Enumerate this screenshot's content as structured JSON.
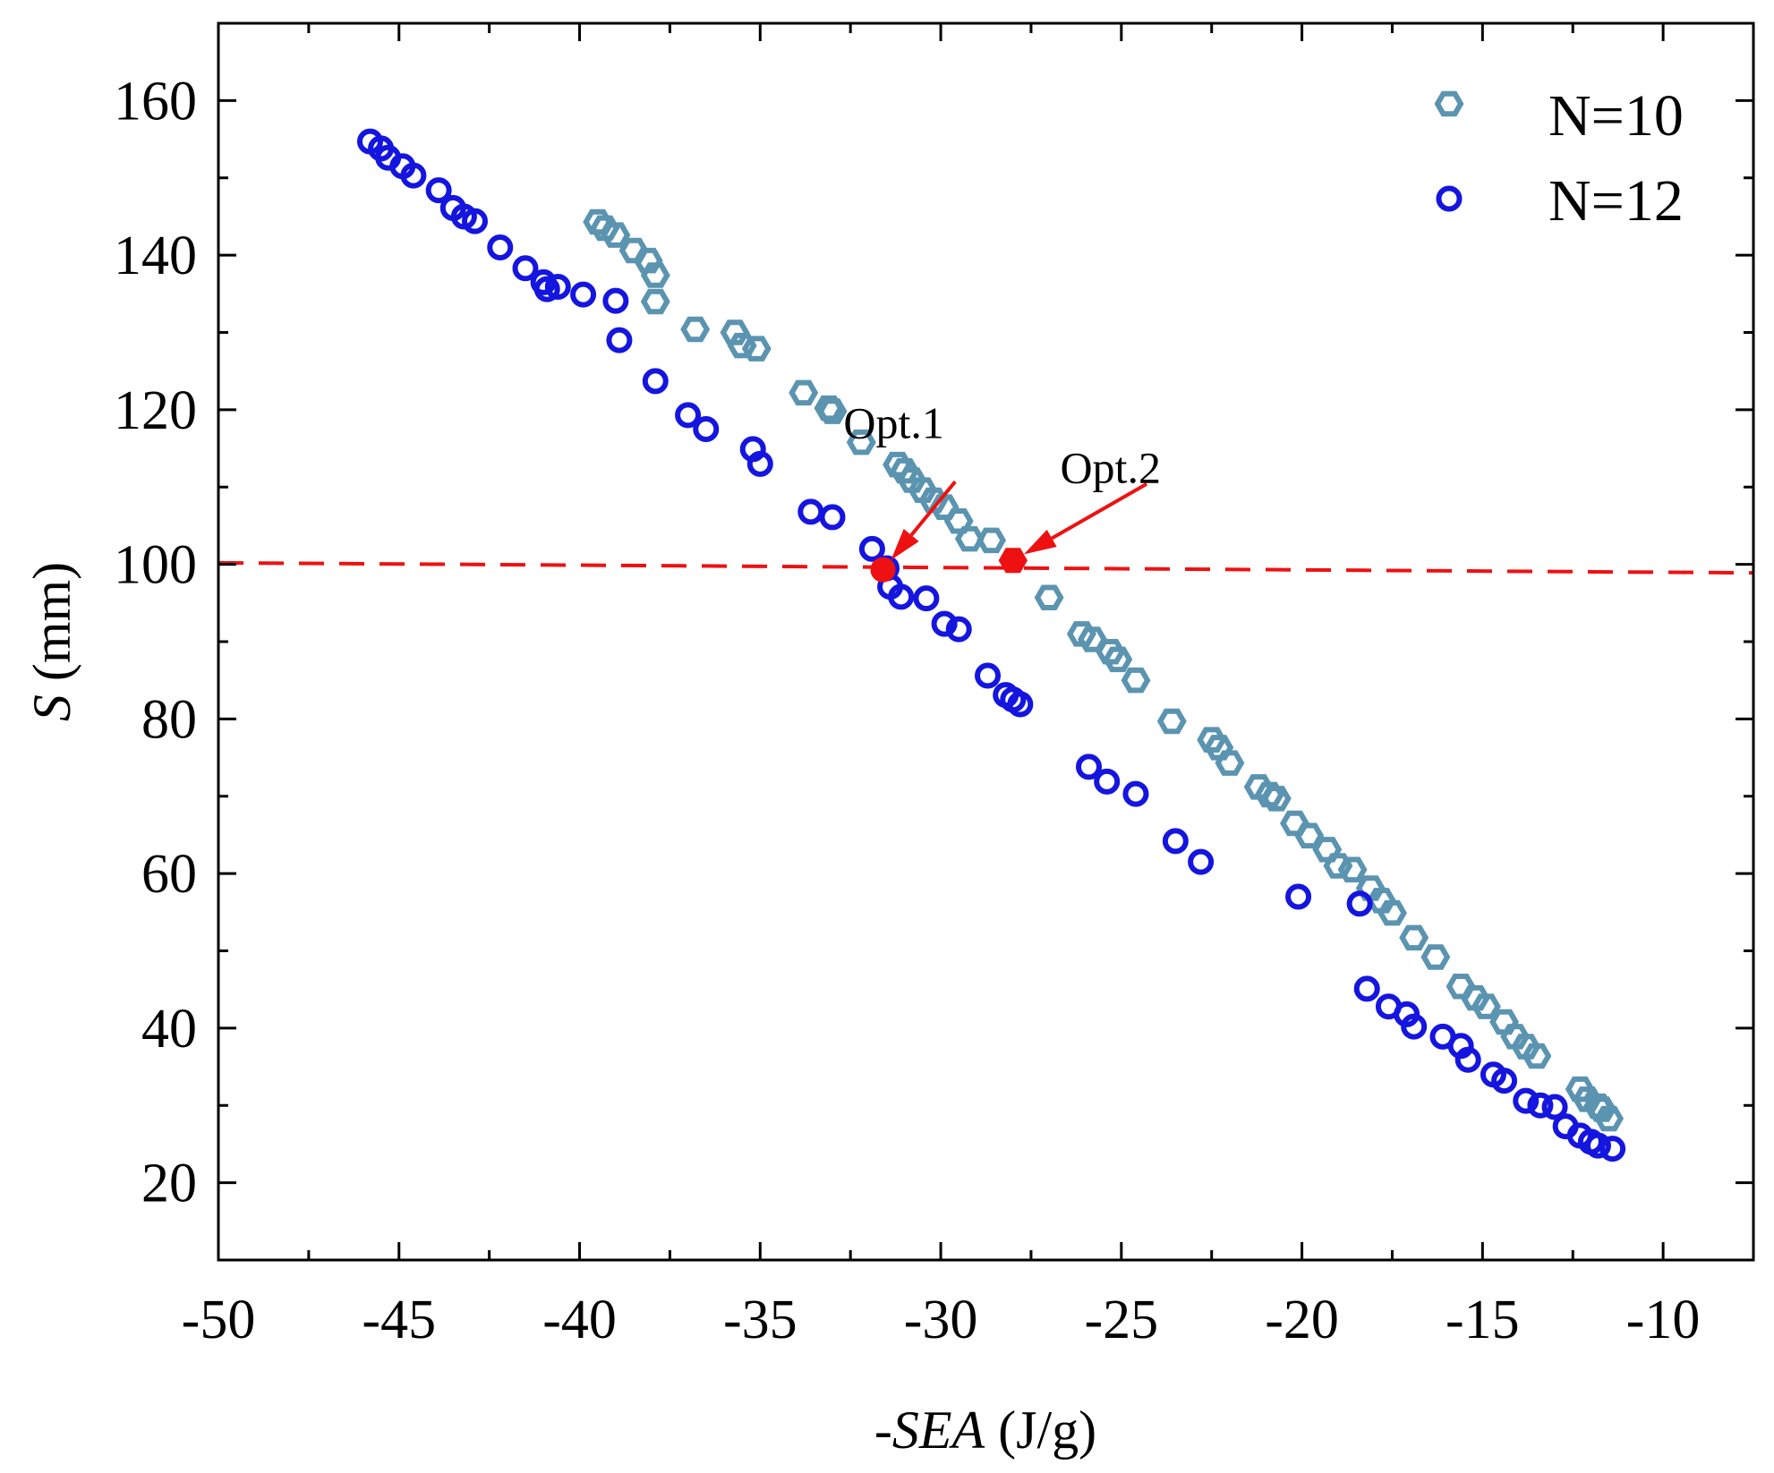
{
  "chart_data": {
    "type": "scatter",
    "title": "",
    "xlabel_prefix": "-",
    "xlabel_italic": "SEA",
    "xlabel_unit": " (J/g)",
    "ylabel_italic": "S",
    "ylabel_unit": " (mm)",
    "xlim": [
      -50,
      -7.5
    ],
    "ylim": [
      10,
      170
    ],
    "xticks": [
      -50,
      -45,
      -40,
      -35,
      -30,
      -25,
      -20,
      -15,
      -10
    ],
    "yticks": [
      20,
      40,
      60,
      80,
      100,
      120,
      140,
      160
    ],
    "grid": false,
    "legend_position": "top-right",
    "series": [
      {
        "name": "N=10",
        "marker": "hexagon-open",
        "color": "#5b94b0",
        "points": [
          [
            -39.5,
            144.3
          ],
          [
            -39.3,
            143.5
          ],
          [
            -39.0,
            142.6
          ],
          [
            -38.5,
            140.6
          ],
          [
            -38.1,
            139.3
          ],
          [
            -37.9,
            137.4
          ],
          [
            -37.9,
            134.0
          ],
          [
            -36.8,
            130.4
          ],
          [
            -35.7,
            130.0
          ],
          [
            -35.5,
            128.3
          ],
          [
            -35.1,
            127.9
          ],
          [
            -33.8,
            122.2
          ],
          [
            -33.1,
            120.2
          ],
          [
            -33.0,
            119.8
          ],
          [
            -32.2,
            115.8
          ],
          [
            -31.2,
            112.9
          ],
          [
            -31.0,
            112.1
          ],
          [
            -30.8,
            110.9
          ],
          [
            -30.5,
            109.6
          ],
          [
            -30.2,
            108.3
          ],
          [
            -29.9,
            107.4
          ],
          [
            -29.5,
            105.6
          ],
          [
            -29.2,
            103.3
          ],
          [
            -28.6,
            103.1
          ],
          [
            -27.0,
            95.7
          ],
          [
            -26.1,
            91.0
          ],
          [
            -25.8,
            90.3
          ],
          [
            -25.3,
            88.7
          ],
          [
            -25.1,
            87.7
          ],
          [
            -24.6,
            85.0
          ],
          [
            -23.6,
            79.7
          ],
          [
            -22.5,
            77.3
          ],
          [
            -22.3,
            76.3
          ],
          [
            -22.0,
            74.3
          ],
          [
            -21.2,
            71.2
          ],
          [
            -20.9,
            70.2
          ],
          [
            -20.7,
            69.7
          ],
          [
            -20.2,
            66.5
          ],
          [
            -19.8,
            64.9
          ],
          [
            -19.3,
            63.1
          ],
          [
            -19.0,
            61.0
          ],
          [
            -18.6,
            60.5
          ],
          [
            -18.1,
            58.1
          ],
          [
            -17.8,
            56.5
          ],
          [
            -17.5,
            54.9
          ],
          [
            -16.9,
            51.7
          ],
          [
            -16.3,
            49.2
          ],
          [
            -15.6,
            45.4
          ],
          [
            -15.2,
            43.9
          ],
          [
            -14.9,
            42.8
          ],
          [
            -14.4,
            40.8
          ],
          [
            -14.1,
            38.9
          ],
          [
            -13.8,
            37.6
          ],
          [
            -13.5,
            36.4
          ],
          [
            -12.3,
            32.1
          ],
          [
            -12.1,
            30.8
          ],
          [
            -11.8,
            29.9
          ],
          [
            -11.7,
            29.5
          ],
          [
            -11.5,
            28.3
          ]
        ]
      },
      {
        "name": "N=12",
        "marker": "circle-open",
        "color": "#1515e0",
        "points": [
          [
            -45.8,
            154.7
          ],
          [
            -45.5,
            153.8
          ],
          [
            -45.3,
            152.6
          ],
          [
            -44.9,
            151.5
          ],
          [
            -44.6,
            150.3
          ],
          [
            -43.9,
            148.4
          ],
          [
            -43.5,
            146.1
          ],
          [
            -43.2,
            145.0
          ],
          [
            -42.9,
            144.4
          ],
          [
            -42.2,
            141.0
          ],
          [
            -41.5,
            138.3
          ],
          [
            -41.0,
            136.5
          ],
          [
            -40.9,
            135.6
          ],
          [
            -40.6,
            135.9
          ],
          [
            -39.9,
            134.9
          ],
          [
            -39.0,
            134.1
          ],
          [
            -38.9,
            129.0
          ],
          [
            -37.9,
            123.7
          ],
          [
            -37.0,
            119.3
          ],
          [
            -36.5,
            117.5
          ],
          [
            -35.2,
            114.9
          ],
          [
            -35.0,
            113.0
          ],
          [
            -33.6,
            106.8
          ],
          [
            -33.0,
            106.1
          ],
          [
            -31.9,
            102.0
          ],
          [
            -31.5,
            99.5
          ],
          [
            -31.4,
            97.1
          ],
          [
            -31.1,
            95.8
          ],
          [
            -30.4,
            95.6
          ],
          [
            -29.9,
            92.3
          ],
          [
            -29.5,
            91.6
          ],
          [
            -28.7,
            85.6
          ],
          [
            -28.2,
            83.1
          ],
          [
            -28.0,
            82.5
          ],
          [
            -27.8,
            81.9
          ],
          [
            -25.9,
            73.8
          ],
          [
            -25.4,
            71.9
          ],
          [
            -24.6,
            70.3
          ],
          [
            -23.5,
            64.2
          ],
          [
            -22.8,
            61.5
          ],
          [
            -20.1,
            57.0
          ],
          [
            -18.4,
            56.1
          ],
          [
            -18.2,
            45.1
          ],
          [
            -17.6,
            42.8
          ],
          [
            -17.1,
            41.8
          ],
          [
            -16.9,
            40.2
          ],
          [
            -16.1,
            38.9
          ],
          [
            -15.6,
            37.7
          ],
          [
            -15.4,
            35.9
          ],
          [
            -14.7,
            34.0
          ],
          [
            -14.4,
            33.2
          ],
          [
            -13.8,
            30.6
          ],
          [
            -13.4,
            30.0
          ],
          [
            -13.0,
            29.8
          ],
          [
            -12.7,
            27.3
          ],
          [
            -12.3,
            26.1
          ],
          [
            -12.0,
            25.3
          ],
          [
            -11.8,
            24.8
          ],
          [
            -11.4,
            24.4
          ]
        ]
      }
    ],
    "reference_line": {
      "style": "dashed",
      "color": "#ee1111",
      "points": [
        [
          -50,
          100.2
        ],
        [
          -7.5,
          98.9
        ]
      ]
    },
    "highlighted_points": [
      {
        "name": "Opt.1",
        "marker": "circle-filled",
        "color": "#ee1111",
        "point": [
          -31.6,
          99.3
        ],
        "label_at": [
          -31.3,
          118.3
        ],
        "arrow_from": [
          -29.6,
          110.7
        ]
      },
      {
        "name": "Opt.2",
        "marker": "hexagon-filled",
        "color": "#ee1111",
        "point": [
          -28.0,
          100.5
        ],
        "label_at": [
          -25.3,
          112.5
        ],
        "arrow_from": [
          -24.3,
          110.4
        ]
      }
    ]
  }
}
